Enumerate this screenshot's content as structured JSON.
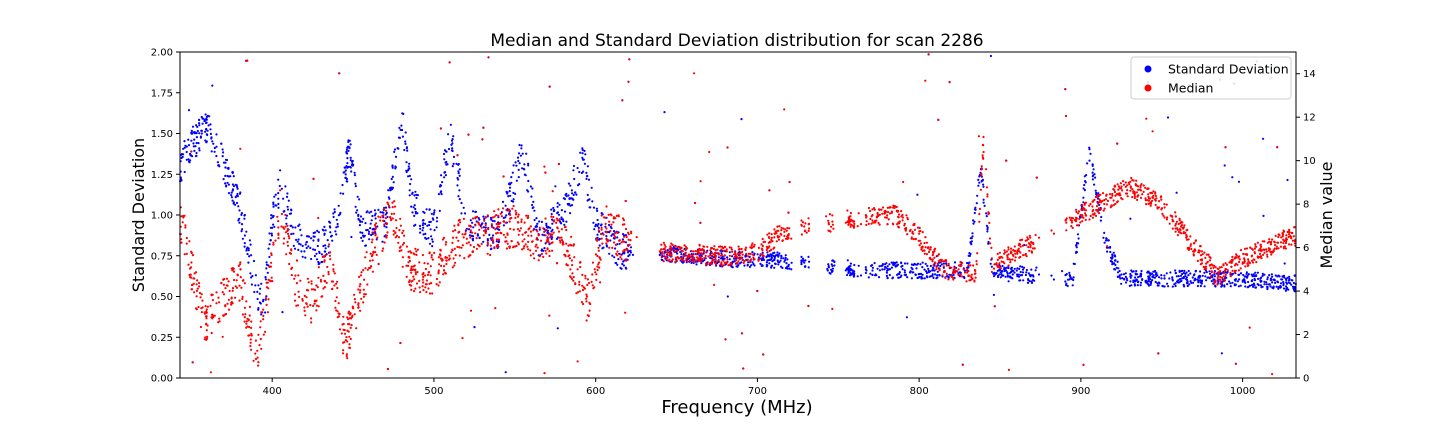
{
  "chart_data": {
    "type": "scatter",
    "title": "Median and Standard Deviation distribution for scan 2286",
    "xlabel": "Frequency (MHz)",
    "ylabel_left": "Standard Deviation",
    "ylabel_right": "Median value",
    "xlim": [
      343,
      1033
    ],
    "ylim_left": [
      0,
      2.0
    ],
    "ylim_right": [
      0,
      15
    ],
    "x_ticks": [
      400,
      500,
      600,
      700,
      800,
      900,
      1000
    ],
    "y_left_ticks": [
      "0.00",
      "0.25",
      "0.50",
      "0.75",
      "1.00",
      "1.25",
      "1.50",
      "1.75",
      "2.00"
    ],
    "y_right_ticks": [
      "0",
      "2",
      "4",
      "6",
      "8",
      "10",
      "12",
      "14"
    ],
    "grid": false,
    "legend_position": "top-right",
    "series": [
      {
        "name": "Standard Deviation",
        "color": "#0000ff",
        "axis": "left",
        "trend": [
          [
            343,
            1.3
          ],
          [
            352,
            1.45
          ],
          [
            360,
            1.55
          ],
          [
            380,
            1.05
          ],
          [
            390,
            0.55
          ],
          [
            395,
            0.45
          ],
          [
            400,
            0.95
          ],
          [
            405,
            1.18
          ],
          [
            415,
            0.85
          ],
          [
            430,
            0.8
          ],
          [
            440,
            0.95
          ],
          [
            448,
            1.4
          ],
          [
            455,
            0.9
          ],
          [
            470,
            0.95
          ],
          [
            480,
            1.6
          ],
          [
            487,
            1.05
          ],
          [
            500,
            0.9
          ],
          [
            510,
            1.5
          ],
          [
            520,
            0.95
          ],
          [
            530,
            0.9
          ],
          [
            540,
            0.88
          ],
          [
            555,
            1.4
          ],
          [
            565,
            0.85
          ],
          [
            580,
            1.0
          ],
          [
            592,
            1.35
          ],
          [
            600,
            0.95
          ],
          [
            615,
            0.78
          ],
          [
            645,
            0.76
          ],
          [
            680,
            0.73
          ],
          [
            717,
            0.72
          ],
          [
            770,
            0.66
          ],
          [
            800,
            0.66
          ],
          [
            830,
            0.66
          ],
          [
            838,
            1.3
          ],
          [
            845,
            0.65
          ],
          [
            870,
            0.63
          ],
          [
            895,
            0.61
          ],
          [
            905,
            1.4
          ],
          [
            915,
            0.85
          ],
          [
            925,
            0.61
          ],
          [
            1000,
            0.61
          ],
          [
            1030,
            0.58
          ]
        ]
      },
      {
        "name": "Median",
        "color": "#ff0000",
        "axis": "right",
        "trend": [
          [
            343,
            7.5
          ],
          [
            350,
            5.0
          ],
          [
            358,
            2.5
          ],
          [
            380,
            4.5
          ],
          [
            390,
            1.0
          ],
          [
            398,
            4.0
          ],
          [
            405,
            7.8
          ],
          [
            415,
            4.0
          ],
          [
            425,
            3.5
          ],
          [
            435,
            5.5
          ],
          [
            445,
            1.5
          ],
          [
            455,
            4.0
          ],
          [
            465,
            6.5
          ],
          [
            475,
            7.5
          ],
          [
            485,
            5.0
          ],
          [
            500,
            4.8
          ],
          [
            510,
            6.0
          ],
          [
            520,
            6.5
          ],
          [
            530,
            6.5
          ],
          [
            540,
            6.8
          ],
          [
            550,
            7.0
          ],
          [
            563,
            6.4
          ],
          [
            580,
            6.5
          ],
          [
            595,
            3.5
          ],
          [
            605,
            7.0
          ],
          [
            617,
            6.4
          ],
          [
            645,
            5.8
          ],
          [
            680,
            5.6
          ],
          [
            700,
            5.8
          ],
          [
            717,
            6.8
          ],
          [
            770,
            7.5
          ],
          [
            785,
            7.5
          ],
          [
            800,
            6.5
          ],
          [
            815,
            5.0
          ],
          [
            835,
            4.8
          ],
          [
            840,
            11.0
          ],
          [
            845,
            5.2
          ],
          [
            870,
            6.2
          ],
          [
            900,
            7.5
          ],
          [
            930,
            8.8
          ],
          [
            950,
            8.0
          ],
          [
            970,
            6.0
          ],
          [
            985,
            4.7
          ],
          [
            1000,
            5.5
          ],
          [
            1030,
            6.5
          ]
        ]
      }
    ]
  }
}
